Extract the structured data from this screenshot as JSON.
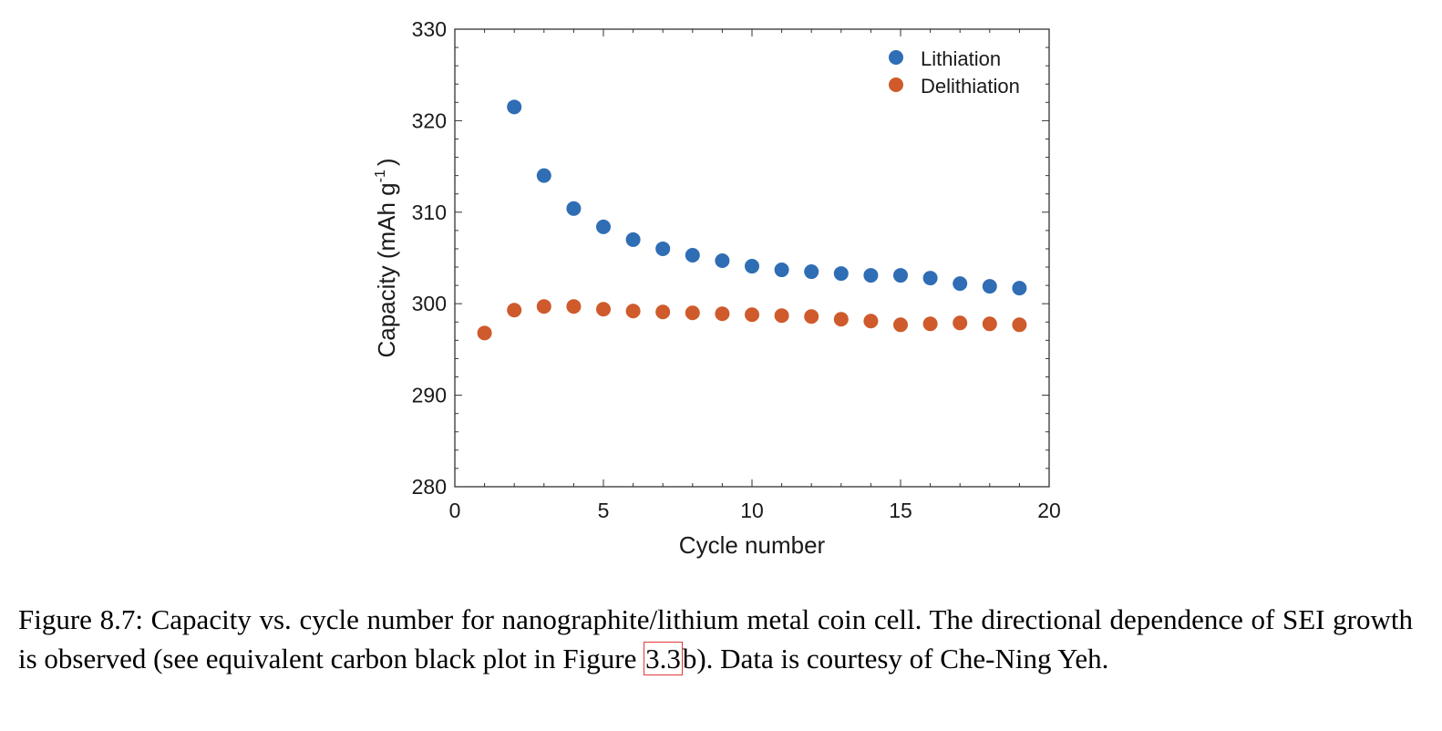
{
  "chart_data": {
    "type": "scatter",
    "xlabel": "Cycle number",
    "ylabel": "Capacity (mAh g",
    "ylabel_sup": "-1",
    "ylabel_close": ")",
    "xlim": [
      0,
      20
    ],
    "ylim": [
      280,
      330
    ],
    "xticks": [
      "0",
      "5",
      "10",
      "15",
      "20"
    ],
    "yticks": [
      "280",
      "290",
      "300",
      "310",
      "320",
      "330"
    ],
    "grid": false,
    "legend_position": "top-right",
    "series": [
      {
        "name": "Lithiation",
        "color": "#2f6db5",
        "x": [
          2,
          3,
          4,
          5,
          6,
          7,
          8,
          9,
          10,
          11,
          12,
          13,
          14,
          15,
          16,
          17,
          18,
          19
        ],
        "y": [
          321.5,
          314.0,
          310.4,
          308.4,
          307.0,
          306.0,
          305.3,
          304.7,
          304.1,
          303.7,
          303.5,
          303.3,
          303.1,
          303.1,
          302.8,
          302.2,
          301.9,
          301.7
        ]
      },
      {
        "name": "Delithiation",
        "color": "#cf5a2b",
        "x": [
          1,
          2,
          3,
          4,
          5,
          6,
          7,
          8,
          9,
          10,
          11,
          12,
          13,
          14,
          15,
          16,
          17,
          18,
          19
        ],
        "y": [
          296.8,
          299.3,
          299.7,
          299.7,
          299.4,
          299.2,
          299.1,
          299.0,
          298.9,
          298.8,
          298.7,
          298.6,
          298.3,
          298.1,
          297.7,
          297.8,
          297.9,
          297.8,
          297.7
        ]
      }
    ]
  },
  "caption": {
    "text_before": "Figure 8.7: Capacity vs.  cycle number for nanographite/lithium metal coin cell.  The directional dependence of SEI growth is observed (see equivalent carbon black plot in Figure ",
    "ref": "3.3",
    "text_after": "b).  Data is courtesy of Che-Ning Yeh."
  }
}
